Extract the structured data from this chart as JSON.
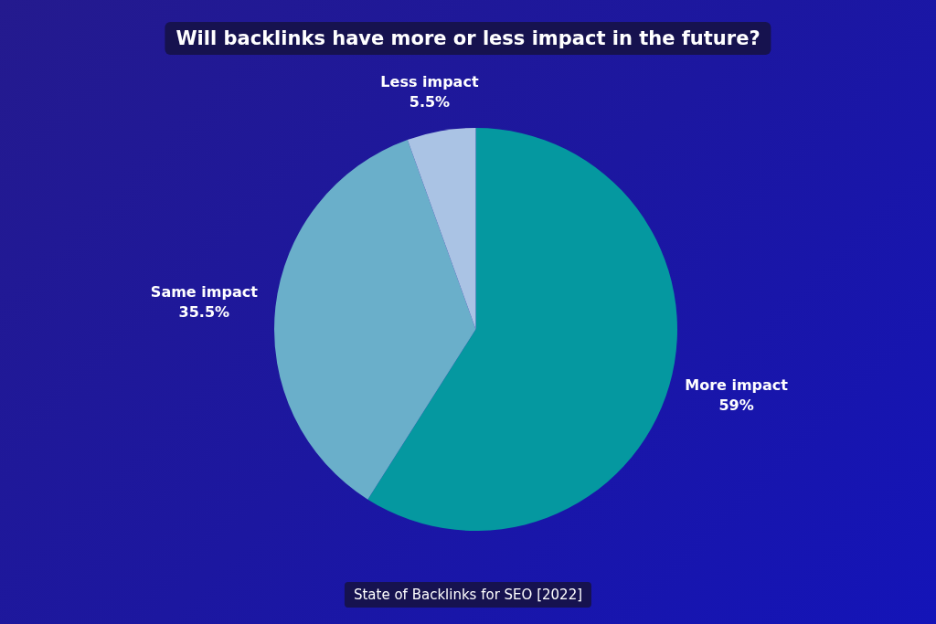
{
  "chart_data": {
    "type": "pie",
    "title": "Will backlinks have more or less impact in the future?",
    "categories": [
      "More impact",
      "Same impact",
      "Less impact"
    ],
    "values": [
      59,
      35.5,
      5.5
    ],
    "value_labels": [
      "59%",
      "35.5%",
      "5.5%"
    ],
    "colors": [
      "#0598a0",
      "#6aafca",
      "#aac3e4"
    ],
    "legend": false,
    "annotations": [
      "State of Backlinks for SEO [2022]"
    ]
  }
}
